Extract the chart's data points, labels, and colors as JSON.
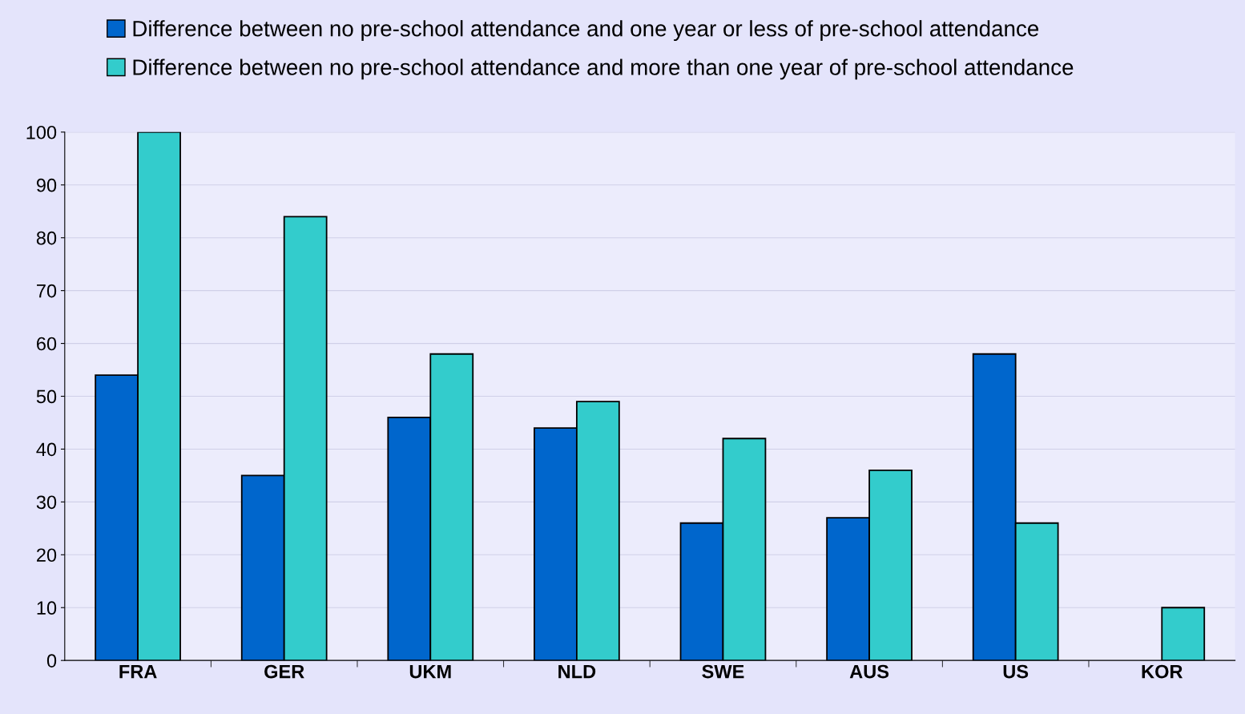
{
  "chart_data": {
    "type": "bar",
    "categories": [
      "FRA",
      "GER",
      "UKM",
      "NLD",
      "SWE",
      "AUS",
      "US",
      "KOR"
    ],
    "series": [
      {
        "name": "Difference between no pre-school attendance and one year or less of pre-school attendance",
        "color": "#0066cc",
        "values": [
          54,
          35,
          46,
          44,
          26,
          27,
          58,
          null
        ]
      },
      {
        "name": "Difference between no pre-school attendance and more than one year of pre-school attendance",
        "color": "#33cccc",
        "values": [
          100,
          84,
          58,
          49,
          42,
          36,
          26,
          10
        ]
      }
    ],
    "ylim": [
      0,
      100
    ],
    "yticks": [
      0,
      10,
      20,
      30,
      40,
      50,
      60,
      70,
      80,
      90,
      100
    ],
    "grid": "y",
    "legend": "top"
  }
}
